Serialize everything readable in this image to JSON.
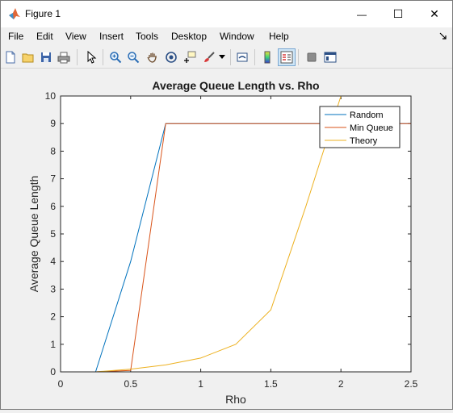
{
  "window": {
    "title": "Figure 1",
    "minimize_glyph": "—",
    "maximize_glyph": "☐",
    "close_glyph": "✕"
  },
  "menu": {
    "items": [
      "File",
      "Edit",
      "View",
      "Insert",
      "Tools",
      "Desktop",
      "Window",
      "Help"
    ]
  },
  "toolbar": {
    "icons": [
      "new-figure-icon",
      "open-file-icon",
      "save-icon",
      "print-icon",
      "pointer-icon",
      "zoom-in-icon",
      "zoom-out-icon",
      "pan-icon",
      "rotate-3d-icon",
      "data-cursor-icon",
      "brush-icon",
      "brush-dropdown-icon",
      "link-plot-icon",
      "colorbar-icon",
      "legend-icon",
      "hide-plot-tools-icon",
      "show-plot-tools-icon"
    ]
  },
  "chart_data": {
    "type": "line",
    "title": "Average Queue Length vs. Rho",
    "xlabel": "Rho",
    "ylabel": "Average Queue Length",
    "xlim": [
      0,
      2.5
    ],
    "ylim": [
      0,
      10
    ],
    "xticks": [
      "0",
      "0.5",
      "1",
      "1.5",
      "2",
      "2.5"
    ],
    "yticks": [
      "0",
      "1",
      "2",
      "3",
      "4",
      "5",
      "6",
      "7",
      "8",
      "9",
      "10"
    ],
    "grid": false,
    "legend_position": "top-right",
    "series": [
      {
        "name": "Random",
        "color": "#0072BD",
        "x": [
          0.25,
          0.5,
          0.75,
          1.0,
          1.25,
          1.5,
          1.75,
          2.0,
          2.25,
          2.5
        ],
        "y": [
          0,
          4.0,
          9,
          9,
          9,
          9,
          9,
          9,
          9,
          9
        ]
      },
      {
        "name": "Min Queue",
        "color": "#D95319",
        "x": [
          0.25,
          0.5,
          0.75,
          1.0,
          1.25,
          1.5,
          1.75,
          2.0,
          2.25,
          2.5
        ],
        "y": [
          0,
          0.05,
          9,
          9,
          9,
          9,
          9,
          9,
          9,
          9
        ]
      },
      {
        "name": "Theory",
        "color": "#EDB120",
        "x": [
          0.25,
          0.5,
          0.75,
          1.0,
          1.25,
          1.5,
          1.75,
          2.0,
          2.25,
          2.5
        ],
        "y": [
          0,
          0.1,
          0.25,
          0.5,
          1.0,
          2.25,
          6.0,
          10,
          10,
          10
        ]
      }
    ]
  }
}
